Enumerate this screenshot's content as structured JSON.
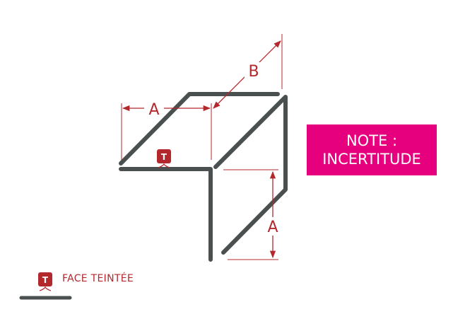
{
  "dimensions": {
    "a_top": "A",
    "b": "B",
    "a_right": "A"
  },
  "badge": {
    "letter": "T"
  },
  "note": {
    "line1": "NOTE :",
    "line2": "INCERTITUDE"
  },
  "legend": {
    "badge_letter": "T",
    "label": "FACE TEINTÉE"
  },
  "colors": {
    "profile": "#4a4f4f",
    "dimension": "#b3282d",
    "note_background": "#e6007e"
  }
}
